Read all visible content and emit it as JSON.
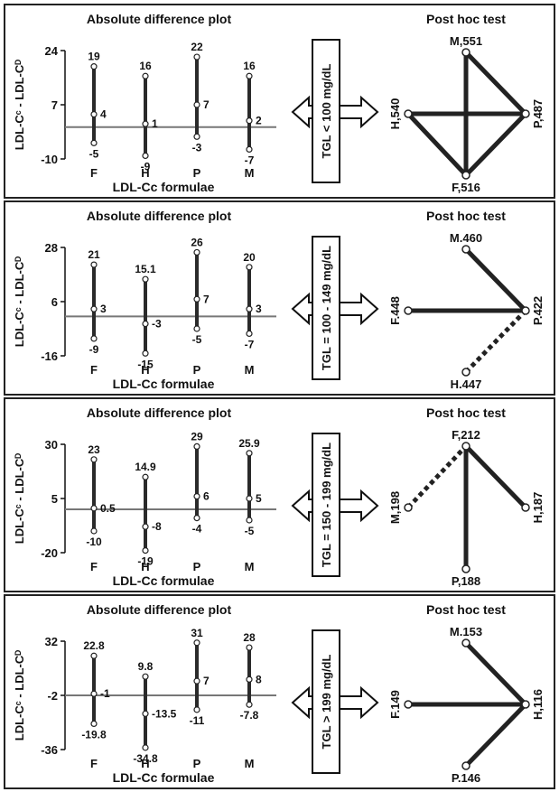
{
  "chart_data": [
    {
      "type": "scatter",
      "title": "Absolute difference plot",
      "ylabel": "LDL-Cᶜ - LDL-Cᴰ",
      "xlabel": "LDL-Cc formulae",
      "y_ticks": [
        "24",
        "7",
        "-10"
      ],
      "ylim": [
        -10,
        24
      ],
      "zero_line": 0,
      "categories": [
        "F",
        "H",
        "P",
        "M"
      ],
      "max": [
        19,
        16,
        22,
        16
      ],
      "mean": [
        4,
        1,
        7,
        2
      ],
      "min": [
        -5,
        -9,
        -3,
        -7
      ],
      "max_labels": [
        "19",
        "16",
        "22",
        "16"
      ],
      "mean_labels": [
        "4",
        "1",
        "7",
        "2"
      ],
      "min_labels": [
        "-5",
        "-9",
        "-3",
        "-7"
      ],
      "condition": "TGL < 100 mg/dL",
      "posthoc": {
        "title": "Post hoc test",
        "nodes": [
          {
            "label": "M,551",
            "side": "top"
          },
          {
            "label": "H,540",
            "side": "left"
          },
          {
            "label": "P,487",
            "side": "right"
          },
          {
            "label": "F,516",
            "side": "bottom"
          }
        ],
        "edges": [
          {
            "from": 0,
            "to": 2,
            "style": "solid"
          },
          {
            "from": 0,
            "to": 3,
            "style": "solid"
          },
          {
            "from": 1,
            "to": 2,
            "style": "solid"
          },
          {
            "from": 1,
            "to": 3,
            "style": "solid"
          },
          {
            "from": 3,
            "to": 2,
            "style": "solid"
          }
        ]
      }
    },
    {
      "type": "scatter",
      "title": "Absolute difference plot",
      "ylabel": "LDL-Cᶜ - LDL-Cᴰ",
      "xlabel": "LDL-Cc formulae",
      "y_ticks": [
        "28",
        "6",
        "-16"
      ],
      "ylim": [
        -16,
        28
      ],
      "zero_line": 0,
      "categories": [
        "F",
        "H",
        "P",
        "M"
      ],
      "max": [
        21,
        15.1,
        26,
        20
      ],
      "mean": [
        3,
        -3,
        7,
        3
      ],
      "min": [
        -9,
        -15,
        -5,
        -7
      ],
      "max_labels": [
        "21",
        "15.1",
        "26",
        "20"
      ],
      "mean_labels": [
        "3",
        "-3",
        "7",
        "3"
      ],
      "min_labels": [
        "-9",
        "-15",
        "-5",
        "-7"
      ],
      "condition": "TGL = 100 - 149 mg/dL",
      "posthoc": {
        "title": "Post hoc test",
        "nodes": [
          {
            "label": "M.460",
            "side": "top"
          },
          {
            "label": "F.448",
            "side": "left"
          },
          {
            "label": "P.422",
            "side": "right"
          },
          {
            "label": "H.447",
            "side": "bottom"
          }
        ],
        "edges": [
          {
            "from": 0,
            "to": 2,
            "style": "solid"
          },
          {
            "from": 1,
            "to": 2,
            "style": "solid"
          },
          {
            "from": 3,
            "to": 2,
            "style": "dashed"
          }
        ]
      }
    },
    {
      "type": "scatter",
      "title": "Absolute difference plot",
      "ylabel": "LDL-Cᶜ - LDL-Cᴰ",
      "xlabel": "LDL-Cc formulae",
      "y_ticks": [
        "30",
        "5",
        "-20"
      ],
      "ylim": [
        -20,
        30
      ],
      "zero_line": 0,
      "categories": [
        "F",
        "H",
        "P",
        "M"
      ],
      "max": [
        23,
        14.9,
        29,
        25.9
      ],
      "mean": [
        0.5,
        -8,
        6,
        5
      ],
      "min": [
        -10,
        -19,
        -4,
        -5
      ],
      "max_labels": [
        "23",
        "14.9",
        "29",
        "25.9"
      ],
      "mean_labels": [
        "0.5",
        "-8",
        "6",
        "5"
      ],
      "min_labels": [
        "-10",
        "-19",
        "-4",
        "-5"
      ],
      "condition": "TGL = 150 - 199 mg/dL",
      "posthoc": {
        "title": "Post hoc test",
        "nodes": [
          {
            "label": "F,212",
            "side": "top"
          },
          {
            "label": "M,198",
            "side": "left"
          },
          {
            "label": "H,187",
            "side": "right"
          },
          {
            "label": "P,188",
            "side": "bottom"
          }
        ],
        "edges": [
          {
            "from": 1,
            "to": 0,
            "style": "dashed"
          },
          {
            "from": 0,
            "to": 2,
            "style": "solid"
          },
          {
            "from": 0,
            "to": 3,
            "style": "solid"
          }
        ]
      }
    },
    {
      "type": "scatter",
      "title": "Absolute difference plot",
      "ylabel": "LDL-Cᶜ - LDL-Cᴰ",
      "xlabel": "LDL-Cc formulae",
      "y_ticks": [
        "32",
        "-2",
        "-36"
      ],
      "ylim": [
        -36,
        32
      ],
      "zero_line": -2,
      "categories": [
        "F",
        "H",
        "P",
        "M"
      ],
      "max": [
        22.8,
        9.8,
        31,
        28
      ],
      "mean": [
        -1,
        -13.5,
        7,
        8
      ],
      "min": [
        -19.8,
        -34.8,
        -11,
        -7.8
      ],
      "max_labels": [
        "22.8",
        "9.8",
        "31",
        "28"
      ],
      "mean_labels": [
        "-1",
        "-13.5",
        "7",
        "8"
      ],
      "min_labels": [
        "-19.8",
        "-34.8",
        "-11",
        "-7.8"
      ],
      "condition": "TGL > 199 mg/dL",
      "posthoc": {
        "title": "Post hoc test",
        "nodes": [
          {
            "label": "M.153",
            "side": "top"
          },
          {
            "label": "F.149",
            "side": "left"
          },
          {
            "label": "H,116",
            "side": "right"
          },
          {
            "label": "P.146",
            "side": "bottom"
          }
        ],
        "edges": [
          {
            "from": 0,
            "to": 2,
            "style": "solid"
          },
          {
            "from": 1,
            "to": 2,
            "style": "solid"
          },
          {
            "from": 3,
            "to": 2,
            "style": "solid"
          }
        ]
      }
    }
  ]
}
